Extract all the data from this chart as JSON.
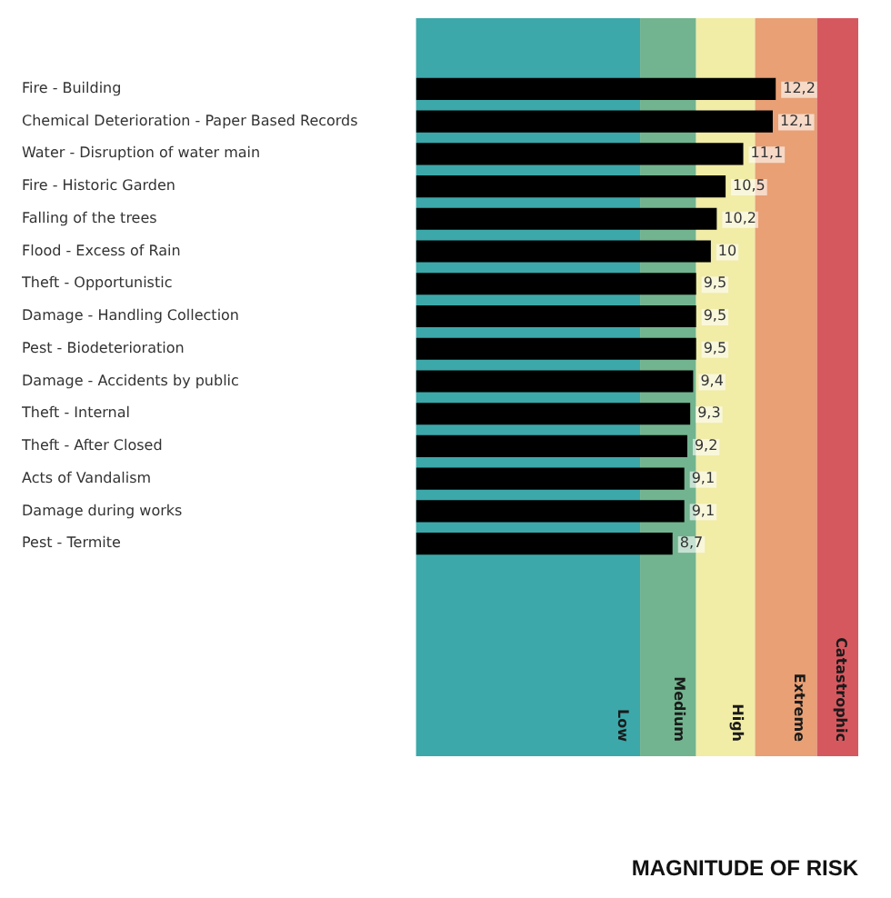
{
  "chart_data": {
    "type": "bar",
    "orientation": "horizontal",
    "annotations": [
      "MAGNITUDE OF RISK"
    ],
    "categories": [
      "Fire - Building",
      "Chemical Deterioration - Paper Based Records",
      "Water - Disruption of water main",
      "Fire - Historic Garden",
      "Falling of the trees",
      "Flood - Excess of Rain",
      "Theft - Opportunistic",
      "Damage - Handling Collection",
      "Pest - Biodeterioration",
      "Damage - Accidents by public",
      "Theft - Internal",
      "Theft - After Closed",
      "Acts of Vandalism",
      "Damage during works",
      "Pest - Termite"
    ],
    "values": [
      12.2,
      12.1,
      11.1,
      10.5,
      10.2,
      10,
      9.5,
      9.5,
      9.5,
      9.4,
      9.3,
      9.2,
      9.1,
      9.1,
      8.7
    ],
    "value_labels": [
      "12,2",
      "12,1",
      "11,1",
      "10,5",
      "10,2",
      "10",
      "9,5",
      "9,5",
      "9,5",
      "9,4",
      "9,3",
      "9,2",
      "9,1",
      "9,1",
      "8,7"
    ],
    "color": "#000000",
    "tick_labels": "y",
    "bands": [
      {
        "axis": "x",
        "from": 0,
        "to": 7.6,
        "label": "Low",
        "color": "#3ca8aa"
      },
      {
        "axis": "x",
        "from": 7.6,
        "to": 9.5,
        "label": "Medium",
        "color": "#72b48f"
      },
      {
        "axis": "x",
        "from": 9.5,
        "to": 11.5,
        "label": "High",
        "color": "#f1eca6"
      },
      {
        "axis": "x",
        "from": 11.5,
        "to": 13.6,
        "label": "Extreme",
        "color": "#e8a074"
      },
      {
        "axis": "x",
        "from": 13.6,
        "to": 15,
        "label": "Catastrophic",
        "color": "#d6585f"
      }
    ]
  }
}
